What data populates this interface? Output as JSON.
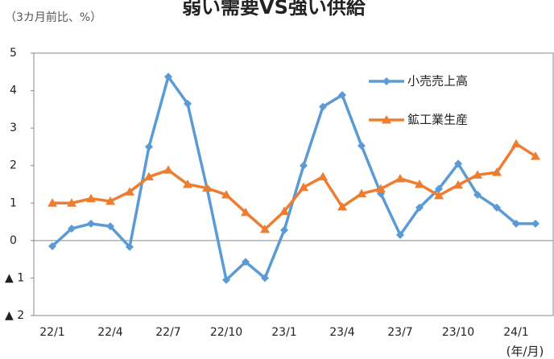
{
  "chart_data": {
    "type": "line",
    "title": "弱い需要VS強い供給",
    "subtitle": "（3カ月前比、%）",
    "x_unit": "(年/月)",
    "categories": [
      "22/1",
      null,
      null,
      "22/4",
      null,
      null,
      "22/7",
      null,
      null,
      "22/10",
      null,
      null,
      "23/1",
      null,
      null,
      "23/4",
      null,
      null,
      "23/7",
      null,
      null,
      "23/10",
      null,
      null,
      "24/1",
      null
    ],
    "series": [
      {
        "name": "小売売上高",
        "color": "#5b9bd5",
        "marker": "diamond",
        "values": [
          -0.15,
          0.32,
          0.45,
          0.38,
          -0.17,
          2.5,
          4.37,
          3.65,
          1.4,
          -1.05,
          -0.57,
          -1.0,
          0.28,
          2.0,
          3.57,
          3.88,
          2.53,
          1.25,
          0.15,
          0.88,
          1.38,
          2.05,
          1.22,
          0.88,
          0.45,
          0.45
        ]
      },
      {
        "name": "鉱工業生産",
        "color": "#ed7d31",
        "marker": "triangle",
        "values": [
          1.0,
          1.0,
          1.12,
          1.05,
          1.3,
          1.7,
          1.88,
          1.5,
          1.4,
          1.22,
          0.75,
          0.3,
          0.78,
          1.42,
          1.7,
          0.9,
          1.25,
          1.38,
          1.65,
          1.5,
          1.2,
          1.48,
          1.75,
          1.82,
          2.58,
          2.25
        ]
      }
    ],
    "ylim": [
      -2,
      5
    ],
    "yticks": [
      {
        "value": -2,
        "label": "▲ 2"
      },
      {
        "value": -1,
        "label": "▲ 1"
      },
      0,
      1,
      2,
      3,
      4,
      5
    ],
    "grid": false,
    "legend": "upper right"
  }
}
